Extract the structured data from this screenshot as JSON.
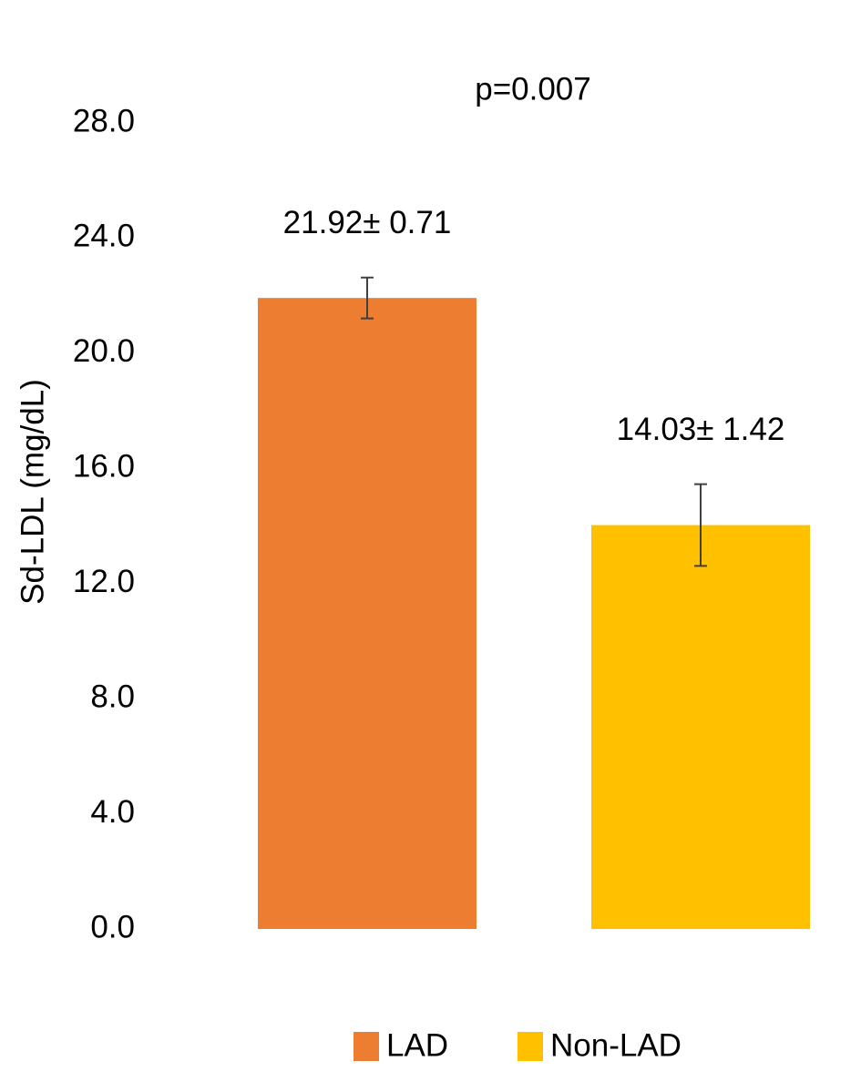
{
  "chart_data": {
    "type": "bar",
    "annotation": "p=0.007",
    "y_label": "Sd-LDL (mg/dL)",
    "categories": [
      null
    ],
    "series": [
      {
        "name": "LAD",
        "color": "#ED7D31",
        "values": [
          21.92
        ],
        "errors": [
          0.71
        ],
        "value_labels": [
          "21.92± 0.71"
        ]
      },
      {
        "name": "Non-LAD",
        "color": "#FFC000",
        "values": [
          14.03
        ],
        "errors": [
          1.42
        ],
        "value_labels": [
          "14.03± 1.42"
        ]
      }
    ],
    "ylim": [
      0,
      28
    ],
    "yticks": [
      {
        "value": 0,
        "label": "0.0"
      },
      {
        "value": 4,
        "label": "4.0"
      },
      {
        "value": 8,
        "label": "8.0"
      },
      {
        "value": 12,
        "label": "12.0"
      },
      {
        "value": 16,
        "label": "16.0"
      },
      {
        "value": 20,
        "label": "20.0"
      },
      {
        "value": 24,
        "label": "24.0"
      },
      {
        "value": 28,
        "label": "28.0"
      }
    ],
    "grid": false,
    "legend": "bottom"
  }
}
